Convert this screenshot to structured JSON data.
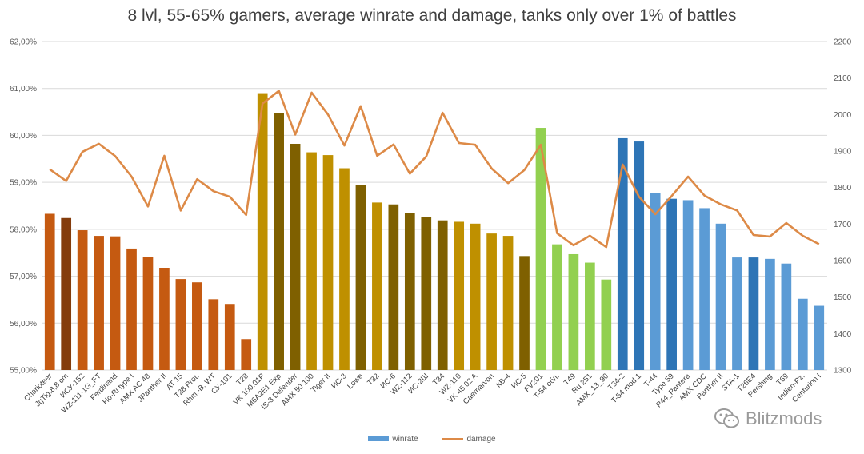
{
  "chart_data": {
    "type": "bar+line",
    "title": "8 lvl, 55-65% gamers, average winrate and damage, tanks only over 1% of battles",
    "categories": [
      "Charioteer",
      "JgTig.8,8 cm",
      "ИСУ-152",
      "WZ-111-1G_FT",
      "Ferdinand",
      "Ho-Ri type I",
      "AMX AC 48",
      "JPanther II",
      "AT 15",
      "T28 Prot.",
      "Rhm.-B. WT",
      "СУ-101",
      "T28",
      "VK 100.01P",
      "M6A2E1 Exp",
      "IS-3 Defender",
      "AMX 50 100",
      "Tiger II",
      "ИС-3",
      "Lowe",
      "T32",
      "ИС-6",
      "WZ-112",
      "ИС-2Ш",
      "T34",
      "WZ-110",
      "VK 45.02 A",
      "Caernarvon",
      "КВ-4",
      "ИС-5",
      "FV201",
      "T-54 обл.",
      "T49",
      "Ru 251",
      "AMX_13_90",
      "T34-2",
      "T-54 mod.1",
      "T-44",
      "Type 59",
      "P44_Pantera",
      "AMX CDC",
      "Panther II",
      "STA-1",
      "T26E4",
      "Pershing",
      "T69",
      "Indien-Pz.",
      "Centurion I"
    ],
    "series": [
      {
        "name": "winrate",
        "axis": "left",
        "values": [
          58.33,
          58.24,
          57.98,
          57.86,
          57.85,
          57.59,
          57.41,
          57.18,
          56.94,
          56.87,
          56.51,
          56.41,
          55.66,
          60.9,
          60.48,
          59.82,
          59.64,
          59.58,
          59.3,
          58.94,
          58.57,
          58.53,
          58.35,
          58.26,
          58.19,
          58.16,
          58.12,
          57.91,
          57.86,
          57.43,
          60.16,
          57.68,
          57.47,
          57.29,
          56.93,
          59.94,
          59.87,
          58.78,
          58.65,
          58.62,
          58.45,
          58.12,
          57.4,
          57.4,
          57.37,
          57.27,
          56.52,
          56.37
        ],
        "colors": [
          "#C55A11",
          "#843C0C",
          "#C55A11",
          "#C55A11",
          "#C55A11",
          "#C55A11",
          "#C55A11",
          "#C55A11",
          "#C55A11",
          "#C55A11",
          "#C55A11",
          "#C55A11",
          "#C55A11",
          "#BF9000",
          "#7F6000",
          "#7F6000",
          "#BF9000",
          "#BF9000",
          "#BF9000",
          "#7F6000",
          "#BF9000",
          "#7F6000",
          "#7F6000",
          "#7F6000",
          "#7F6000",
          "#BF9000",
          "#BF9000",
          "#BF9000",
          "#BF9000",
          "#7F6000",
          "#92D050",
          "#92D050",
          "#92D050",
          "#92D050",
          "#92D050",
          "#2E75B6",
          "#2E75B6",
          "#5B9BD5",
          "#2E75B6",
          "#5B9BD5",
          "#5B9BD5",
          "#5B9BD5",
          "#5B9BD5",
          "#2E75B6",
          "#5B9BD5",
          "#5B9BD5",
          "#5B9BD5",
          "#5B9BD5"
        ]
      },
      {
        "name": "damage",
        "axis": "right",
        "color": "#DD8A47",
        "values": [
          1850,
          1818,
          1898,
          1920,
          1886,
          1830,
          1748,
          1887,
          1737,
          1823,
          1790,
          1775,
          1725,
          2030,
          2065,
          1945,
          2060,
          2000,
          1915,
          2023,
          1887,
          1918,
          1838,
          1885,
          2005,
          1922,
          1917,
          1852,
          1812,
          1848,
          1917,
          1675,
          1642,
          1668,
          1637,
          1863,
          1775,
          1727,
          1777,
          1830,
          1778,
          1754,
          1737,
          1670,
          1666,
          1703,
          1668,
          1645
        ]
      }
    ],
    "y_left": {
      "min": 55.0,
      "max": 62.0,
      "step": 1.0,
      "ticks": [
        "55,00%",
        "56,00%",
        "57,00%",
        "58,00%",
        "59,00%",
        "60,00%",
        "61,00%",
        "62,00%"
      ]
    },
    "y_right": {
      "min": 1300,
      "max": 2200,
      "step": 100,
      "ticks": [
        "1300",
        "1400",
        "1500",
        "1600",
        "1700",
        "1800",
        "1900",
        "2000",
        "2100",
        "2200"
      ]
    },
    "grid": true,
    "legend": [
      {
        "label": "winrate",
        "color": "#5B9BD5",
        "kind": "bar"
      },
      {
        "label": "damage",
        "color": "#DD8A47",
        "kind": "line"
      }
    ],
    "legend_position": "bottom"
  },
  "watermark": {
    "text": "Blitzmods",
    "icon": "wechat-icon"
  }
}
